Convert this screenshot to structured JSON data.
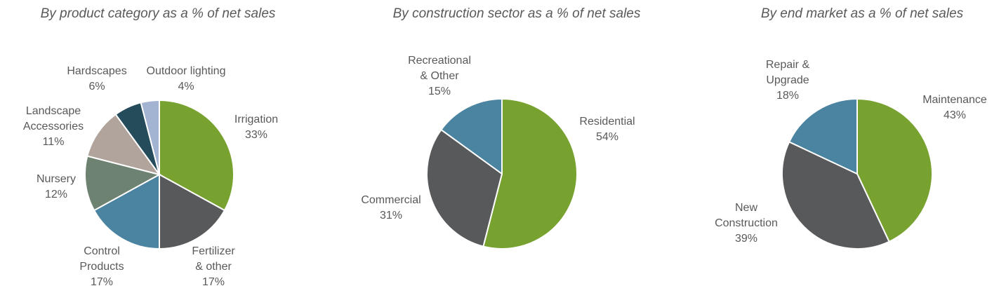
{
  "chart_data": [
    {
      "type": "pie",
      "title": "By product category as a % of net sales",
      "categories": [
        "Irrigation",
        "Fertilizer & other",
        "Control Products",
        "Nursery",
        "Landscape Accessories",
        "Hardscapes",
        "Outdoor lighting"
      ],
      "values": [
        33,
        17,
        17,
        12,
        11,
        6,
        4
      ],
      "value_labels": [
        "33%",
        "17%",
        "17%",
        "12%",
        "11%",
        "6%",
        "4%"
      ],
      "colors": [
        "#77a22f",
        "#58595b",
        "#4a84a0",
        "#6e8272",
        "#b0a49c",
        "#244c5a",
        "#a2b4d2"
      ]
    },
    {
      "type": "pie",
      "title": "By construction sector as a % of net sales",
      "categories": [
        "Residential",
        "Commercial",
        "Recreational & Other"
      ],
      "values": [
        54,
        31,
        15
      ],
      "value_labels": [
        "54%",
        "31%",
        "15%"
      ],
      "colors": [
        "#77a22f",
        "#58595b",
        "#4a84a0"
      ]
    },
    {
      "type": "pie",
      "title": "By end market as a % of net sales",
      "categories": [
        "Maintenance",
        "New Construction",
        "Repair & Upgrade"
      ],
      "values": [
        43,
        39,
        18
      ],
      "value_labels": [
        "43%",
        "39%",
        "18%"
      ],
      "colors": [
        "#77a22f",
        "#58595b",
        "#4a84a0"
      ]
    }
  ]
}
